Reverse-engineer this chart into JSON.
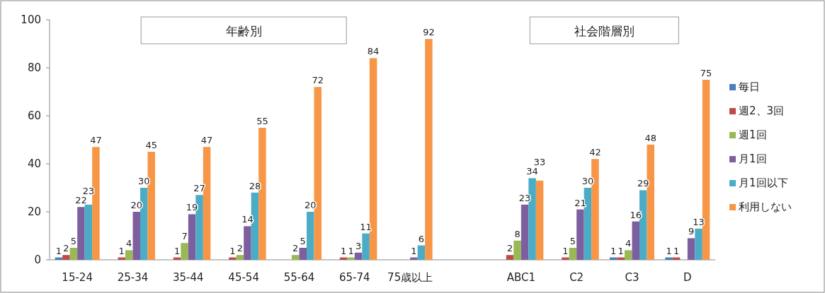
{
  "chart_data": {
    "type": "bar",
    "categories": [
      "15-24",
      "25-34",
      "35-44",
      "45-54",
      "55-64",
      "65-74",
      "75歳以上",
      null,
      "ABC1",
      "C2",
      "C3",
      "D"
    ],
    "series": [
      {
        "name": "毎日",
        "color": "#4a7ebb",
        "values": [
          1,
          null,
          null,
          null,
          null,
          null,
          null,
          null,
          null,
          null,
          1,
          1
        ]
      },
      {
        "name": "週2、3回",
        "color": "#be4b48",
        "values": [
          2,
          1,
          1,
          1,
          null,
          1,
          null,
          null,
          2,
          1,
          1,
          1
        ]
      },
      {
        "name": "週1回",
        "color": "#98b954",
        "values": [
          5,
          4,
          7,
          2,
          2,
          1,
          null,
          null,
          8,
          5,
          4,
          null
        ]
      },
      {
        "name": "月1回",
        "color": "#7d5fa0",
        "values": [
          22,
          20,
          19,
          14,
          5,
          3,
          1,
          null,
          23,
          21,
          16,
          9
        ]
      },
      {
        "name": "月1回以下",
        "color": "#4bacc6",
        "values": [
          23,
          30,
          27,
          28,
          20,
          11,
          6,
          null,
          34,
          30,
          29,
          13
        ]
      },
      {
        "name": "利用しない",
        "color": "#f79646",
        "values": [
          47,
          45,
          47,
          55,
          72,
          84,
          92,
          null,
          33,
          42,
          48,
          75
        ]
      }
    ],
    "ylim": [
      0,
      100
    ],
    "yticks": [
      0,
      20,
      40,
      60,
      80,
      100
    ],
    "data_labels": true,
    "legend": "right",
    "grid": false,
    "annotations": [
      "年齢別",
      "社会階層別"
    ]
  }
}
